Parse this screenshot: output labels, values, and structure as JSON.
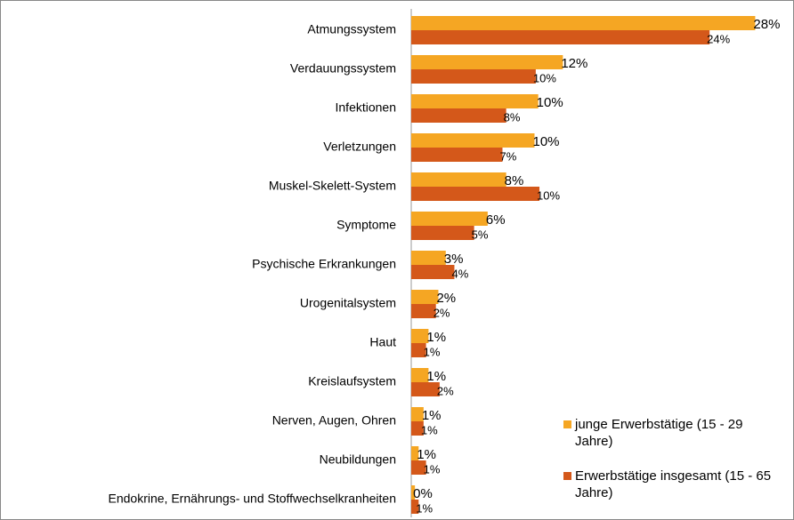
{
  "chart_data": {
    "type": "bar",
    "orientation": "horizontal",
    "categories": [
      "Atmungssystem",
      "Verdauungssystem",
      "Infektionen",
      "Verletzungen",
      "Muskel-Skelett-System",
      "Symptome",
      "Psychische Erkrankungen",
      "Urogenitalsystem",
      "Haut",
      "Kreislaufsystem",
      "Nerven, Augen, Ohren",
      "Neubildungen",
      "Endokrine, Ernährungs- und Stoffwechselkranheiten"
    ],
    "series": [
      {
        "name": "junge Erwerbstätige (15 - 29 Jahre)",
        "color": "#f5a623",
        "values": [
          27.9,
          12.3,
          10.3,
          10.0,
          7.7,
          6.2,
          2.8,
          2.2,
          1.4,
          1.4,
          1.0,
          0.6,
          0.3
        ],
        "value_labels": [
          "28%",
          "12%",
          "10%",
          "10%",
          "8%",
          "6%",
          "3%",
          "2%",
          "1%",
          "1%",
          "1%",
          "1%",
          "0%"
        ]
      },
      {
        "name": "Erwerbstätige insgesamt (15 - 65 Jahre)",
        "color": "#d4581a",
        "values": [
          24.2,
          10.1,
          7.7,
          7.4,
          10.4,
          5.1,
          3.5,
          2.0,
          1.2,
          2.3,
          1.0,
          1.2,
          0.6
        ],
        "value_labels": [
          "24%",
          "10%",
          "8%",
          "7%",
          "10%",
          "5%",
          "4%",
          "2%",
          "1%",
          "2%",
          "1%",
          "1%",
          "1%"
        ]
      }
    ],
    "xlim": [
      0,
      30
    ],
    "legend": "bottom-right"
  }
}
